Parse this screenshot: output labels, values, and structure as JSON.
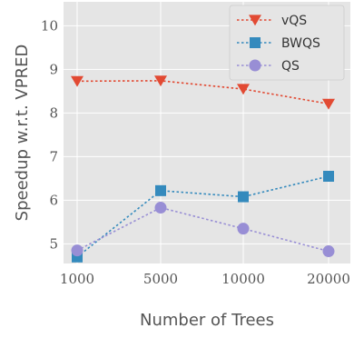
{
  "chart_data": {
    "type": "line",
    "categories": [
      "1000",
      "5000",
      "10000",
      "20000"
    ],
    "xlabel": "Number of Trees",
    "ylabel": "Speedup w.r.t. VPRED",
    "ylim": [
      4.55,
      10.55
    ],
    "yticks": [
      "5",
      "6",
      "7",
      "8",
      "9",
      "10"
    ],
    "grid": true,
    "legend_position": "top-right",
    "series": [
      {
        "name": "vQS",
        "values": [
          8.73,
          8.74,
          8.55,
          8.21
        ],
        "color": "#e24a33",
        "marker": "triangle-down"
      },
      {
        "name": "BWQS",
        "values": [
          4.7,
          6.22,
          6.08,
          6.55
        ],
        "color": "#348abd",
        "marker": "square"
      },
      {
        "name": "QS",
        "values": [
          4.85,
          5.83,
          5.35,
          4.83
        ],
        "color": "#988ed5",
        "marker": "circle"
      }
    ]
  }
}
